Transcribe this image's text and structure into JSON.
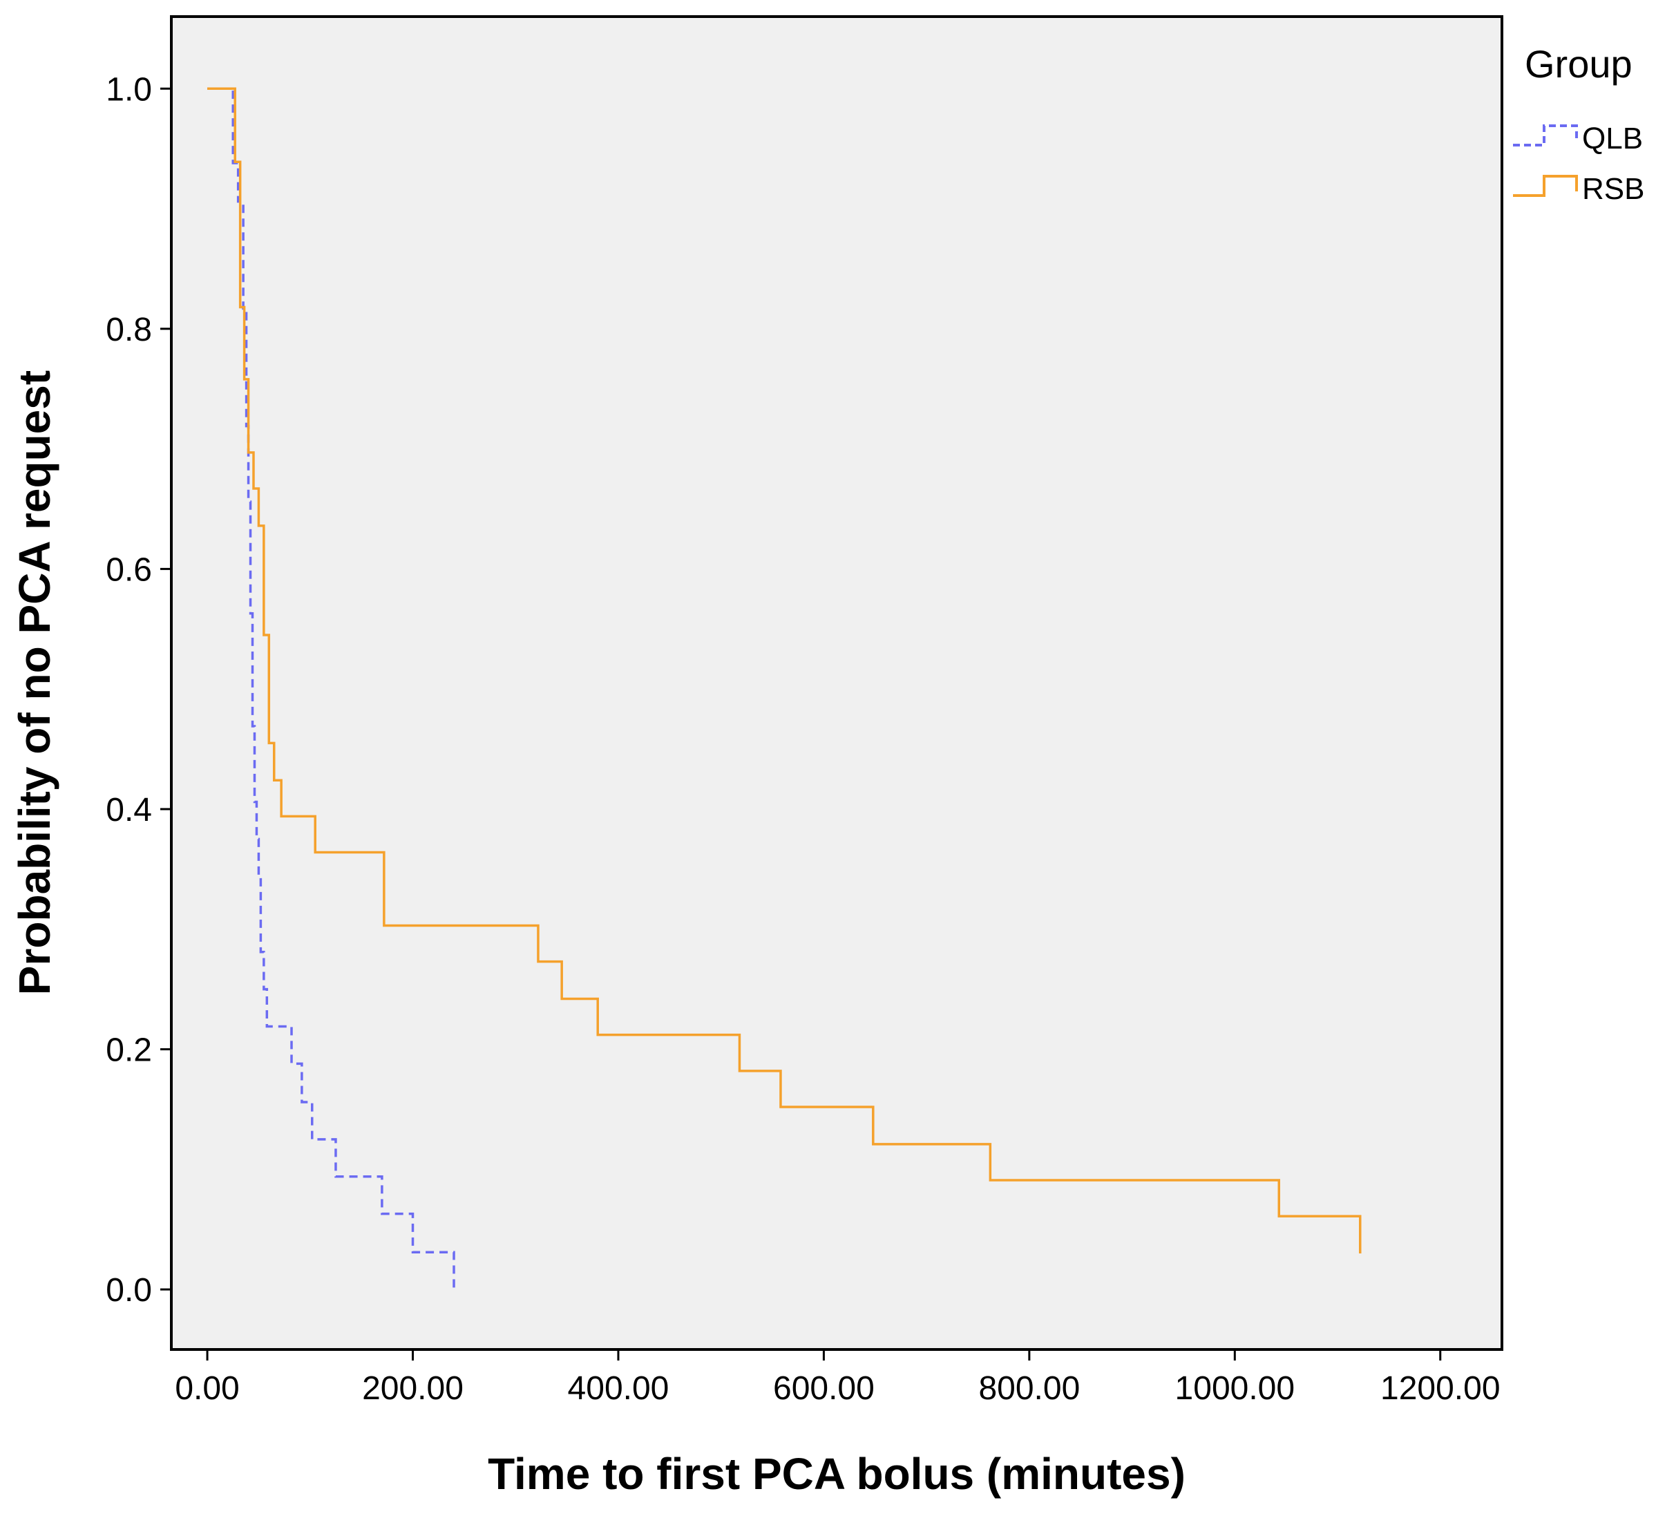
{
  "chart_data": {
    "type": "line",
    "subtype": "kaplan-meier step",
    "title": "",
    "xlabel": "Time to first PCA bolus (minutes)",
    "ylabel": "Probability of no PCA request",
    "xlim": [
      -35,
      1260
    ],
    "ylim": [
      -0.05,
      1.06
    ],
    "x_ticks": [
      0,
      200,
      400,
      600,
      800,
      1000,
      1200
    ],
    "x_tick_labels": [
      "0.00",
      "200.00",
      "400.00",
      "600.00",
      "800.00",
      "1000.00",
      "1200.00"
    ],
    "y_ticks": [
      0.0,
      0.2,
      0.4,
      0.6,
      0.8,
      1.0
    ],
    "y_tick_labels": [
      "0.0",
      "0.2",
      "0.4",
      "0.6",
      "0.8",
      "1.0"
    ],
    "grid": false,
    "plot_background": "#f0f0f0",
    "legend": {
      "title": "Group",
      "position": "right-outside-top"
    },
    "series": [
      {
        "name": "QLB",
        "color": "#6b6bf2",
        "style": "dashed",
        "times": [
          0,
          25,
          30,
          35,
          38,
          40,
          42,
          44,
          46,
          48,
          50,
          52,
          55,
          58,
          60,
          82,
          92,
          102,
          125,
          170,
          200,
          240
        ],
        "survival": [
          1.0,
          0.938,
          0.906,
          0.813,
          0.719,
          0.656,
          0.563,
          0.469,
          0.406,
          0.375,
          0.344,
          0.281,
          0.25,
          0.219,
          0.219,
          0.188,
          0.156,
          0.125,
          0.094,
          0.063,
          0.031,
          0.0
        ]
      },
      {
        "name": "RSB",
        "color": "#f5a12c",
        "style": "solid",
        "times": [
          0,
          27,
          32,
          36,
          40,
          45,
          50,
          55,
          60,
          65,
          72,
          105,
          172,
          322,
          345,
          380,
          518,
          558,
          648,
          762,
          1043,
          1122
        ],
        "survival": [
          1.0,
          0.939,
          0.818,
          0.758,
          0.697,
          0.667,
          0.636,
          0.545,
          0.455,
          0.424,
          0.394,
          0.364,
          0.303,
          0.273,
          0.242,
          0.212,
          0.182,
          0.152,
          0.121,
          0.091,
          0.061,
          0.03
        ]
      }
    ]
  }
}
